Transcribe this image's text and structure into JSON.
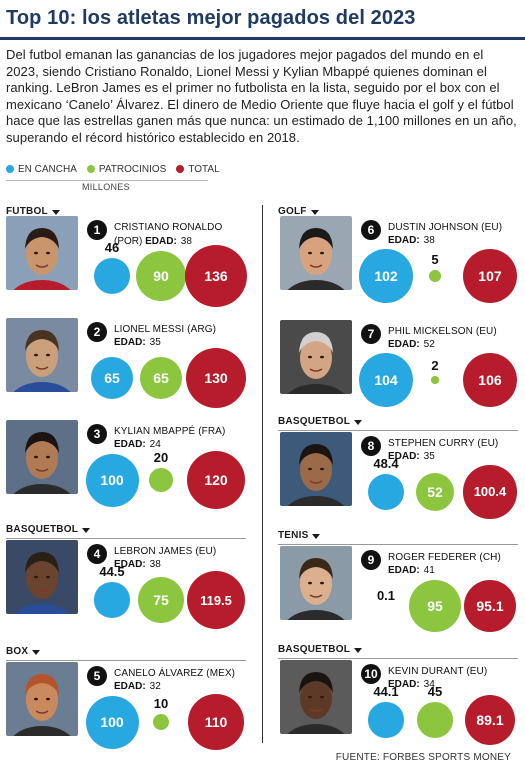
{
  "header": {
    "title": "Top 10: los atletas mejor pagados del 2023",
    "intro": "Del futbol emanan las ganancias de los jugadores mejor pagados del mundo en el 2023, siendo Cristiano Ronaldo, Lionel Messi y Kylian Mbappé quienes dominan el ranking. LeBron James es el primer no futbolista en la lista, seguido por el box con el mexicano ‘Canelo’ Álvarez. El dinero de Medio Oriente que fluye hacia el golf y el fútbol hace que las estrellas ganen más que nunca: un estimado de 1,100 millones en un año, superando el récord histórico establecido en 2018."
  },
  "legend": {
    "items": [
      {
        "label": "EN CANCHA",
        "color": "#27a8e0"
      },
      {
        "label": "PATROCINIOS",
        "color": "#8cc63f"
      },
      {
        "label": "TOTAL",
        "color": "#b71c2c"
      }
    ],
    "units": "MILLONES"
  },
  "sections": {
    "futbol": "FUTBOL",
    "golf": "GOLF",
    "basquetbol": "BASQUETBOL",
    "tenis": "TENIS",
    "box": "BOX"
  },
  "age_label": "EDAD:",
  "source": "FUENTE: FORBES SPORTS MONEY",
  "chart_data": {
    "type": "bubble",
    "title": "Top 10: los atletas mejor pagados del 2023",
    "units": "MILLONES",
    "series": [
      {
        "name": "EN CANCHA",
        "color": "#27a8e0"
      },
      {
        "name": "PATROCINIOS",
        "color": "#8cc63f"
      },
      {
        "name": "TOTAL",
        "color": "#b71c2c"
      }
    ],
    "athletes": [
      {
        "rank": "1",
        "name": "CRISTIANO RONALDO",
        "country": "(POR)",
        "age": "38",
        "sport": "FUTBOL",
        "en_cancha": "46",
        "patrocinios": "90",
        "total": "136"
      },
      {
        "rank": "2",
        "name": "LIONEL MESSI (ARG)",
        "country": "",
        "age": "35",
        "sport": "FUTBOL",
        "en_cancha": "65",
        "patrocinios": "65",
        "total": "130"
      },
      {
        "rank": "3",
        "name": "KYLIAN MBAPPÉ (FRA)",
        "country": "",
        "age": "24",
        "sport": "FUTBOL",
        "en_cancha": "100",
        "patrocinios": "20",
        "total": "120"
      },
      {
        "rank": "4",
        "name": "LEBRON JAMES (EU)",
        "country": "",
        "age": "38",
        "sport": "BASQUETBOL",
        "en_cancha": "44.5",
        "patrocinios": "75",
        "total": "119.5"
      },
      {
        "rank": "5",
        "name": "CANELO ÁLVAREZ (MEX)",
        "country": "",
        "age": "32",
        "sport": "BOX",
        "en_cancha": "100",
        "patrocinios": "10",
        "total": "110"
      },
      {
        "rank": "6",
        "name": "DUSTIN JOHNSON (EU)",
        "country": "",
        "age": "38",
        "sport": "GOLF",
        "en_cancha": "102",
        "patrocinios": "5",
        "total": "107"
      },
      {
        "rank": "7",
        "name": "PHIL MICKELSON (EU)",
        "country": "",
        "age": "52",
        "sport": "GOLF",
        "en_cancha": "104",
        "patrocinios": "2",
        "total": "106"
      },
      {
        "rank": "8",
        "name": "STEPHEN CURRY (EU)",
        "country": "",
        "age": "35",
        "sport": "BASQUETBOL",
        "en_cancha": "48.4",
        "patrocinios": "52",
        "total": "100.4"
      },
      {
        "rank": "9",
        "name": "ROGER FEDERER (CH)",
        "country": "",
        "age": "41",
        "sport": "TENIS",
        "en_cancha": "0.1",
        "patrocinios": "95",
        "total": "95.1"
      },
      {
        "rank": "10",
        "name": "KEVIN DURANT (EU)",
        "country": "",
        "age": "34",
        "sport": "BASQUETBOL",
        "en_cancha": "44.1",
        "patrocinios": "45",
        "total": "89.1"
      }
    ]
  }
}
